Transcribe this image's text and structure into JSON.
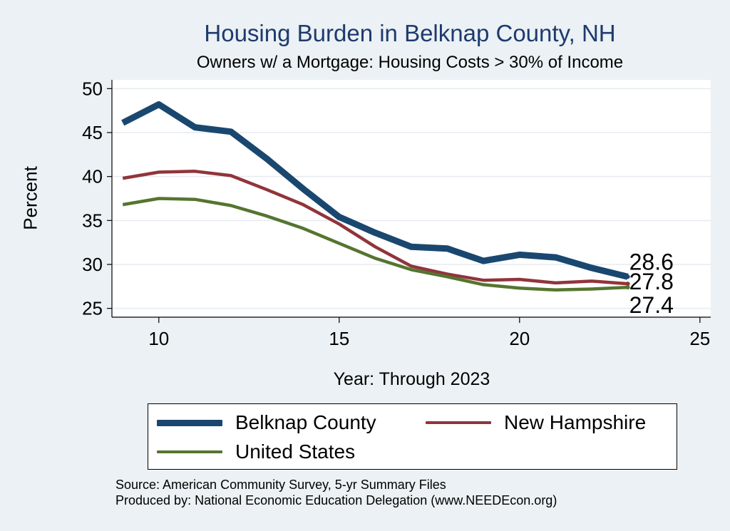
{
  "chart_data": {
    "type": "line",
    "title": "Housing Burden in Belknap County, NH",
    "subtitle": "Owners w/ a Mortgage: Housing Costs > 30% of Income",
    "xlabel": "Year: Through 2023",
    "ylabel": "Percent",
    "xlim": [
      8.7,
      25.3
    ],
    "ylim": [
      24,
      51
    ],
    "xticks": [
      10,
      15,
      20,
      25
    ],
    "yticks": [
      25,
      30,
      35,
      40,
      45,
      50
    ],
    "grid": true,
    "x": [
      9,
      10,
      11,
      12,
      13,
      14,
      15,
      16,
      17,
      18,
      19,
      20,
      21,
      22,
      23
    ],
    "series": [
      {
        "name": "Belknap County",
        "color": "#1a476f",
        "width": 9,
        "values": [
          46.1,
          48.2,
          45.6,
          45.1,
          42.0,
          38.6,
          35.4,
          33.6,
          32.0,
          31.8,
          30.4,
          31.1,
          30.8,
          29.6,
          28.6
        ],
        "end_label": "28.6"
      },
      {
        "name": "New Hampshire",
        "color": "#90353b",
        "width": 4.5,
        "values": [
          39.8,
          40.5,
          40.6,
          40.1,
          38.5,
          36.8,
          34.6,
          32.0,
          29.8,
          28.9,
          28.2,
          28.3,
          27.9,
          28.1,
          27.8
        ],
        "end_label": "27.8"
      },
      {
        "name": "United States",
        "color": "#55752f",
        "width": 4.5,
        "values": [
          36.8,
          37.5,
          37.4,
          36.7,
          35.5,
          34.1,
          32.4,
          30.7,
          29.4,
          28.6,
          27.7,
          27.3,
          27.1,
          27.2,
          27.4
        ],
        "end_label": "27.4"
      }
    ],
    "legend_position": "bottom"
  },
  "source_note": "Source: American Community Survey, 5-yr Summary Files",
  "producer_note": "Produced by: National Economic Education Delegation (www.NEEDEcon.org)"
}
